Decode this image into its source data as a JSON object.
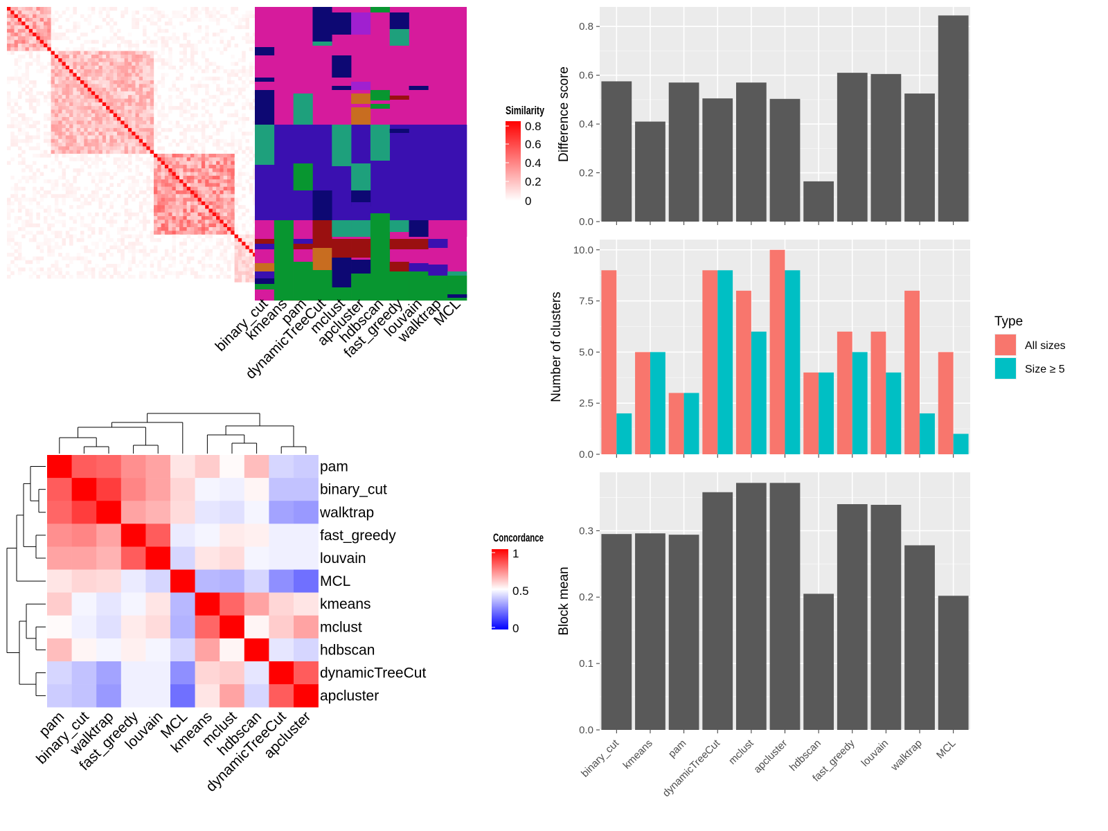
{
  "chart_data": [
    {
      "type": "heatmap",
      "panel": "similarity-heatmap",
      "legend_title": "Similarity",
      "legend_ticks": [
        "0.8",
        "0.6",
        "0.4",
        "0.2",
        "0"
      ],
      "colors": [
        "#ffffff",
        "#ff0000"
      ],
      "n": 80,
      "blocks": [
        {
          "rows": [
            0,
            12
          ],
          "level": 0.32
        },
        {
          "rows": [
            12,
            40
          ],
          "level": 0.25
        },
        {
          "rows": [
            40,
            62
          ],
          "level": 0.38
        },
        {
          "rows": [
            62,
            75
          ],
          "level": 0.15
        },
        {
          "rows": [
            75,
            80
          ],
          "level": 0.5
        }
      ]
    },
    {
      "type": "heatmap",
      "panel": "cluster-label-heatmap",
      "columns": [
        "binary_cut",
        "kmeans",
        "pam",
        "dynamicTreeCut",
        "mclust",
        "apcluster",
        "hdbscan",
        "fast_greedy",
        "louvain",
        "walktrap",
        "MCL"
      ],
      "colors": {
        "magenta": "#d61b9c",
        "indigo": "#3a10b0",
        "navy": "#0d0873",
        "green": "#089630",
        "teal": "#1ea07c",
        "darkred": "#9a1010",
        "orange": "#c86d20",
        "purple": "#a020d0"
      }
    },
    {
      "type": "bar",
      "panel": "difference-score",
      "categories": [
        "binary_cut",
        "kmeans",
        "pam",
        "dynamicTreeCut",
        "mclust",
        "apcluster",
        "hdbscan",
        "fast_greedy",
        "louvain",
        "walktrap",
        "MCL"
      ],
      "values": [
        0.575,
        0.41,
        0.57,
        0.505,
        0.57,
        0.503,
        0.165,
        0.61,
        0.605,
        0.525,
        0.845
      ],
      "ylabel": "Difference score",
      "ylim": [
        0,
        0.88
      ],
      "yticks": [
        "0.0",
        "0.2",
        "0.4",
        "0.6",
        "0.8"
      ],
      "colors": {
        "bar": "#595959",
        "panel": "#ebebeb",
        "grid": "#ffffff"
      }
    },
    {
      "type": "bar",
      "panel": "number-of-clusters",
      "categories": [
        "binary_cut",
        "kmeans",
        "pam",
        "dynamicTreeCut",
        "mclust",
        "apcluster",
        "hdbscan",
        "fast_greedy",
        "louvain",
        "walktrap",
        "MCL"
      ],
      "series": [
        {
          "name": "All sizes",
          "values": [
            9,
            5,
            3,
            9,
            8,
            10,
            4,
            6,
            6,
            8,
            5
          ],
          "color": "#f8766d"
        },
        {
          "name": "Size ≥ 5",
          "values": [
            2,
            5,
            3,
            9,
            6,
            9,
            4,
            5,
            4,
            2,
            1
          ],
          "color": "#00bfc4"
        }
      ],
      "ylabel": "Number of clusters",
      "ylim": [
        0,
        10.5
      ],
      "yticks": [
        "0.0",
        "2.5",
        "5.0",
        "7.5",
        "10.0"
      ],
      "legend": {
        "title": "Type",
        "position": "right"
      }
    },
    {
      "type": "bar",
      "panel": "block-mean",
      "categories": [
        "binary_cut",
        "kmeans",
        "pam",
        "dynamicTreeCut",
        "mclust",
        "apcluster",
        "hdbscan",
        "fast_greedy",
        "louvain",
        "walktrap",
        "MCL"
      ],
      "values": [
        0.295,
        0.296,
        0.294,
        0.358,
        0.372,
        0.372,
        0.205,
        0.34,
        0.339,
        0.278,
        0.202
      ],
      "ylabel": "Block mean",
      "ylim": [
        0,
        0.388
      ],
      "yticks": [
        "0.0",
        "0.1",
        "0.2",
        "0.3"
      ]
    },
    {
      "type": "heatmap",
      "panel": "concordance-heatmap",
      "legend_title": "Concordance",
      "legend_ticks": [
        "1",
        "0.5",
        "0"
      ],
      "colors": [
        "#0000ff",
        "#ffffff",
        "#ff0000"
      ],
      "rows": [
        "pam",
        "binary_cut",
        "walktrap",
        "fast_greedy",
        "louvain",
        "MCL",
        "kmeans",
        "mclust",
        "hdbscan",
        "dynamicTreeCut",
        "apcluster"
      ],
      "columns": [
        "pam",
        "binary_cut",
        "walktrap",
        "fast_greedy",
        "louvain",
        "MCL",
        "kmeans",
        "mclust",
        "hdbscan",
        "dynamicTreeCut",
        "apcluster"
      ],
      "values": [
        [
          1.0,
          0.82,
          0.8,
          0.72,
          0.68,
          0.55,
          0.6,
          0.51,
          0.63,
          0.42,
          0.4
        ],
        [
          0.82,
          1.0,
          0.88,
          0.74,
          0.68,
          0.58,
          0.48,
          0.47,
          0.52,
          0.38,
          0.38
        ],
        [
          0.8,
          0.88,
          1.0,
          0.68,
          0.65,
          0.57,
          0.45,
          0.44,
          0.48,
          0.32,
          0.3
        ],
        [
          0.72,
          0.74,
          0.68,
          1.0,
          0.82,
          0.46,
          0.48,
          0.54,
          0.53,
          0.47,
          0.47
        ],
        [
          0.68,
          0.68,
          0.65,
          0.82,
          1.0,
          0.42,
          0.55,
          0.57,
          0.48,
          0.47,
          0.47
        ],
        [
          0.55,
          0.58,
          0.57,
          0.46,
          0.42,
          1.0,
          0.36,
          0.35,
          0.42,
          0.28,
          0.22
        ],
        [
          0.6,
          0.48,
          0.45,
          0.48,
          0.55,
          0.36,
          1.0,
          0.8,
          0.68,
          0.58,
          0.55
        ],
        [
          0.51,
          0.47,
          0.44,
          0.54,
          0.57,
          0.35,
          0.8,
          1.0,
          0.52,
          0.6,
          0.68
        ],
        [
          0.63,
          0.52,
          0.48,
          0.53,
          0.48,
          0.42,
          0.68,
          0.52,
          1.0,
          0.45,
          0.42
        ],
        [
          0.42,
          0.38,
          0.32,
          0.47,
          0.47,
          0.28,
          0.58,
          0.6,
          0.45,
          1.0,
          0.82
        ],
        [
          0.4,
          0.38,
          0.3,
          0.47,
          0.47,
          0.22,
          0.55,
          0.68,
          0.42,
          0.82,
          1.0
        ]
      ]
    }
  ]
}
